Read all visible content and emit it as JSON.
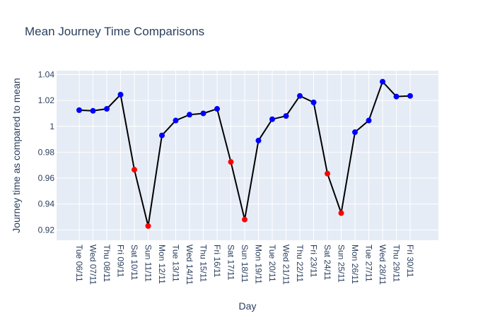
{
  "chart_data": {
    "type": "line",
    "title": "Mean Journey Time Comparisons",
    "xlabel": "Day",
    "ylabel": "Journey time as compared to mean",
    "ylim": [
      0.912,
      1.043
    ],
    "y_ticks": [
      0.92,
      0.94,
      0.96,
      0.98,
      1,
      1.02,
      1.04
    ],
    "y_tick_labels": [
      "0.92",
      "0.94",
      "0.96",
      "0.98",
      "1",
      "1.02",
      "1.04"
    ],
    "grid": true,
    "colors": {
      "plot_background": "#e5ecf6",
      "grid": "#ffffff",
      "line": "#000000",
      "weekday_marker": "#0000ff",
      "weekend_marker": "#ff0000",
      "text": "#2a3f5f"
    },
    "categories": [
      "Tue 06/11",
      "Wed 07/11",
      "Thu 08/11",
      "Fri 09/11",
      "Sat 10/11",
      "Sun 11/11",
      "Mon 12/11",
      "Tue 13/11",
      "Wed 14/11",
      "Thu 15/11",
      "Fri 16/11",
      "Sat 17/11",
      "Sun 18/11",
      "Mon 19/11",
      "Tue 20/11",
      "Wed 21/11",
      "Thu 22/11",
      "Fri 23/11",
      "Sat 24/11",
      "Sun 25/11",
      "Mon 26/11",
      "Tue 27/11",
      "Wed 28/11",
      "Thu 29/11",
      "Fri 30/11"
    ],
    "values": [
      1.0125,
      1.012,
      1.0135,
      1.0245,
      0.9665,
      0.923,
      0.993,
      1.0045,
      1.009,
      1.01,
      1.0135,
      0.9725,
      0.928,
      0.989,
      1.0055,
      1.008,
      1.0235,
      1.0185,
      0.9635,
      0.933,
      0.9955,
      1.0045,
      1.0345,
      1.023,
      1.0235
    ],
    "marker_colors": [
      "#0000ff",
      "#0000ff",
      "#0000ff",
      "#0000ff",
      "#ff0000",
      "#ff0000",
      "#0000ff",
      "#0000ff",
      "#0000ff",
      "#0000ff",
      "#0000ff",
      "#ff0000",
      "#ff0000",
      "#0000ff",
      "#0000ff",
      "#0000ff",
      "#0000ff",
      "#0000ff",
      "#ff0000",
      "#ff0000",
      "#0000ff",
      "#0000ff",
      "#0000ff",
      "#0000ff",
      "#0000ff"
    ]
  }
}
